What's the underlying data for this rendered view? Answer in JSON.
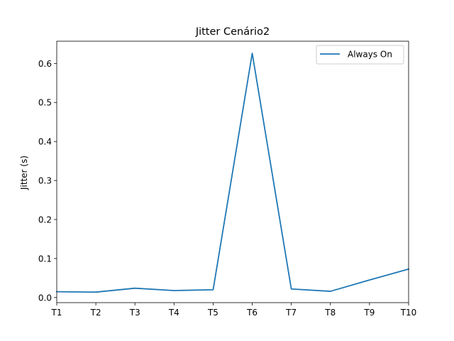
{
  "chart_data": {
    "type": "line",
    "title": "Jitter Cenário2",
    "xlabel": "",
    "ylabel": "Jitter (s)",
    "categories": [
      "T1",
      "T2",
      "T3",
      "T4",
      "T5",
      "T6",
      "T7",
      "T8",
      "T9",
      "T10"
    ],
    "series": [
      {
        "name": "Always On",
        "color": "#1f77b4",
        "values": [
          0.015,
          0.014,
          0.024,
          0.018,
          0.02,
          0.626,
          0.022,
          0.016,
          0.045,
          0.073
        ]
      }
    ],
    "ylim": [
      -0.013,
      0.657
    ],
    "yticks": [
      "0.0",
      "0.1",
      "0.2",
      "0.3",
      "0.4",
      "0.5",
      "0.6"
    ],
    "grid": false,
    "legend_position": "top-right"
  }
}
